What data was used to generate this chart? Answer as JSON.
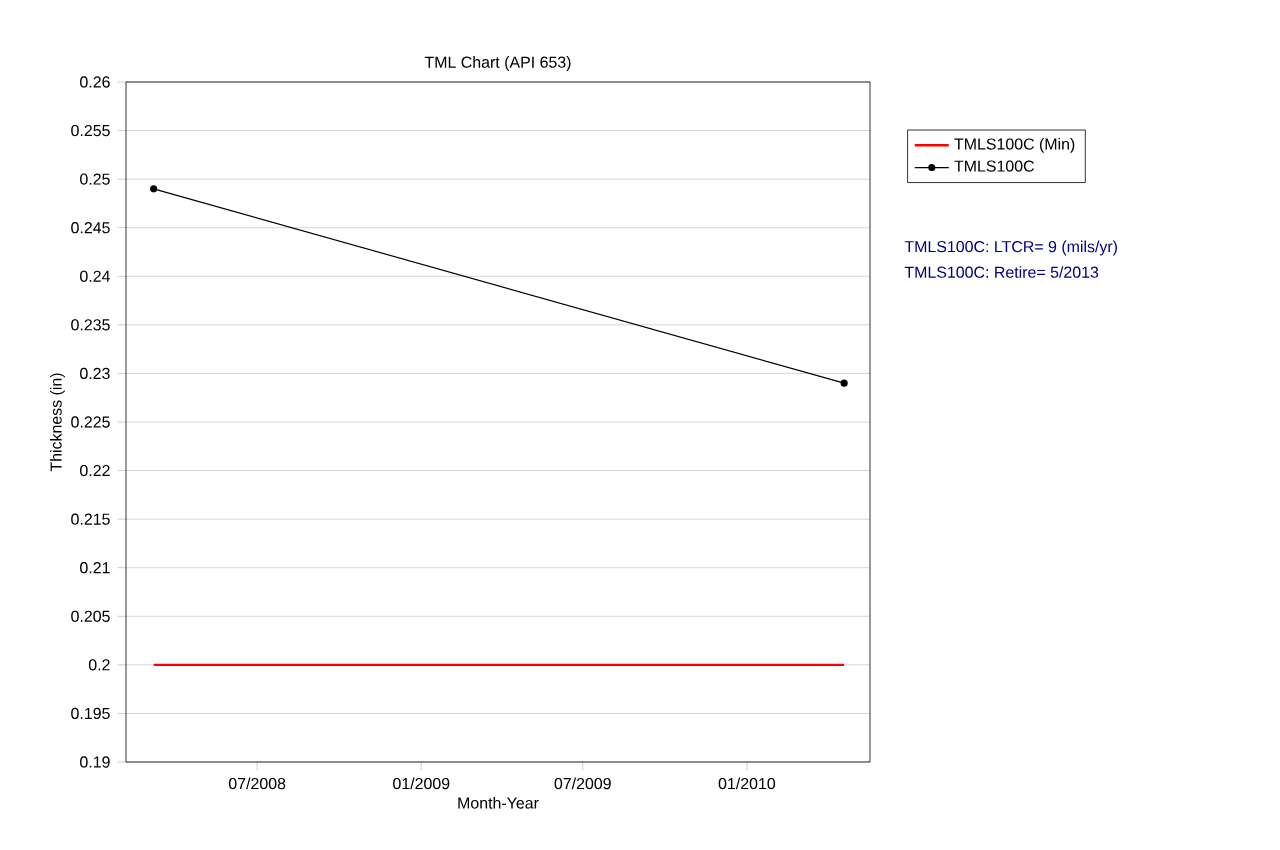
{
  "chart_data": {
    "type": "line",
    "title": "TML Chart (API 653)",
    "xlabel": "Month-Year",
    "ylabel": "Thickness (in)",
    "xlim": [
      "2008-02-05",
      "2010-05-19"
    ],
    "xticks": [
      {
        "value": "2008-07-01",
        "label": "07/2008"
      },
      {
        "value": "2009-01-01",
        "label": "01/2009"
      },
      {
        "value": "2009-07-01",
        "label": "07/2009"
      },
      {
        "value": "2010-01-01",
        "label": "01/2010"
      }
    ],
    "ylim": [
      0.19,
      0.26
    ],
    "yticks": [
      0.19,
      0.195,
      0.2,
      0.205,
      0.21,
      0.215,
      0.22,
      0.225,
      0.23,
      0.235,
      0.24,
      0.245,
      0.25,
      0.255,
      0.26
    ],
    "grid": "y",
    "legend": "right",
    "series": [
      {
        "name": "TMLS100C (Min)",
        "color": "#ff0000",
        "marker": "none",
        "x": [
          "2008-03-07",
          "2010-04-20"
        ],
        "values": [
          0.2,
          0.2
        ]
      },
      {
        "name": "TMLS100C",
        "color": "#000000",
        "marker": "circle",
        "x": [
          "2008-03-07",
          "2010-04-20"
        ],
        "values": [
          0.249,
          0.229
        ]
      }
    ],
    "annotations": [
      "TMLS100C: LTCR= 9 (mils/yr)",
      "TMLS100C: Retire= 5/2013"
    ]
  }
}
